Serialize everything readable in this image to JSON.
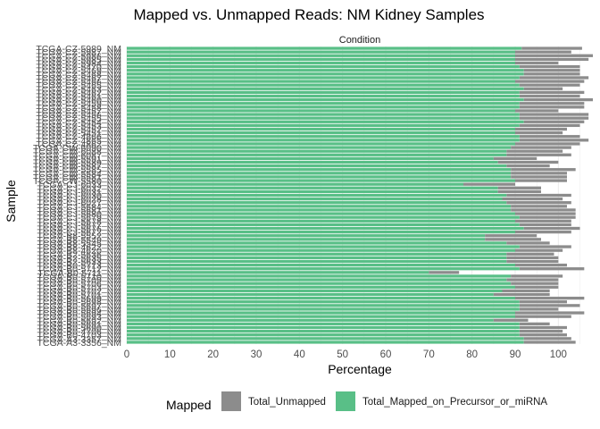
{
  "chart_data": {
    "type": "bar",
    "orientation": "horizontal",
    "stacked": true,
    "title": "Mapped vs. Unmapped Reads: NM Kidney Samples",
    "facet_label": "Condition",
    "xlabel": "Percentage",
    "ylabel": "Sample",
    "xlim": [
      0,
      108
    ],
    "x_ticks": [
      "0",
      "10",
      "20",
      "30",
      "40",
      "50",
      "60",
      "70",
      "80",
      "90",
      "100"
    ],
    "grid": true,
    "legend": {
      "title": "Mapped",
      "position": "bottom",
      "entries": [
        "Total_Unmapped",
        "Total_Mapped_on_Precursor_or_miRNA"
      ]
    },
    "colors": {
      "Total_Unmapped": "#8c8c8c",
      "Total_Mapped_on_Precursor_or_miRNA": "#59bf87"
    },
    "categories": [
      "TCGA-CZ-5989_NM",
      "TCGA-CZ-5987_NM",
      "TCGA-CZ-5986_NM",
      "TCGA-CZ-5985_NM",
      "TCGA-CZ-5984_NM",
      "TCGA-CZ-5470_NM",
      "TCGA-CZ-5469_NM",
      "TCGA-CZ-5468_NM",
      "TCGA-CZ-5467_NM",
      "TCGA-CZ-5466_NM",
      "TCGA-CZ-5465_NM",
      "TCGA-CZ-5463_NM",
      "TCGA-CZ-5462_NM",
      "TCGA-CZ-5461_NM",
      "TCGA-CZ-5460_NM",
      "TCGA-CZ-5459_NM",
      "TCGA-CZ-5458_NM",
      "TCGA-CZ-5457_NM",
      "TCGA-CZ-5456_NM",
      "TCGA-CZ-5455_NM",
      "TCGA-CZ-5454_NM",
      "TCGA-CZ-5453_NM",
      "TCGA-CZ-5452_NM",
      "TCGA-CZ-5451_NM",
      "TCGA-CZ-4866_NM",
      "TCGA-CZ-4865_NM",
      "TCGA-CZ-4862_NM",
      "TCGA-CW-6090_NM",
      "TCGA-CW-6088_NM",
      "TCGA-CW-6087_NM",
      "TCGA-CW-5591_NM",
      "TCGA-CW-5589_NM",
      "TCGA-CW-5587_NM",
      "TCGA-CW-5585_NM",
      "TCGA-CW-5584_NM",
      "TCGA-CW-5581_NM",
      "TCGA-CW-5580_NM",
      "TCGA-CJ-6033_NM",
      "TCGA-CJ-6032_NM",
      "TCGA-CJ-6031_NM",
      "TCGA-CJ-6030_NM",
      "TCGA-CJ-6028_NM",
      "TCGA-CJ-6027_NM",
      "TCGA-CJ-5684_NM",
      "TCGA-CJ-5681_NM",
      "TCGA-CJ-5680_NM",
      "TCGA-CJ-5679_NM",
      "TCGA-CJ-5678_NM",
      "TCGA-CJ-5677_NM",
      "TCGA-CJ-5676_NM",
      "TCGA-CJ-5672_NM",
      "TCGA-B8-5552_NM",
      "TCGA-B8-5549_NM",
      "TCGA-B8-5545_NM",
      "TCGA-B8-4622_NM",
      "TCGA-B8-4620_NM",
      "TCGA-B2-5636_NM",
      "TCGA-B2-5635_NM",
      "TCGA-B2-5633_NM",
      "TCGA-B0-5713_NM",
      "TCGA-B0-5712_NM",
      "TCGA-B0-5711_NM",
      "TCGA-B0-5710_NM",
      "TCGA-B0-5709_NM",
      "TCGA-B0-5706_NM",
      "TCGA-B0-5703_NM",
      "TCGA-B0-5702_NM",
      "TCGA-B0-5701_NM",
      "TCGA-B0-5699_NM",
      "TCGA-B0-5698_NM",
      "TCGA-B0-5697_NM",
      "TCGA-B0-5696_NM",
      "TCGA-B0-5694_NM",
      "TCGA-B0-5693_NM",
      "TCGA-B0-5692_NM",
      "TCGA-B0-5691_NM",
      "TCGA-B0-5690_NM",
      "TCGA-B0-4706_NM",
      "TCGA-B0-4703_NM",
      "TCGA-A3-3357_NM",
      "TCGA-A3-3356_NM"
    ],
    "series": [
      {
        "name": "Total_Mapped_on_Precursor_or_miRNA",
        "values": [
          91.5,
          90,
          90,
          90,
          90,
          91,
          92,
          92,
          91,
          90,
          91,
          92,
          91,
          91,
          92,
          91,
          91,
          90,
          91,
          91,
          92,
          91,
          90,
          90,
          91,
          91,
          90,
          89,
          88,
          88,
          85,
          86,
          88,
          89,
          89,
          89,
          90,
          78,
          86,
          86,
          88,
          87,
          88,
          89,
          89,
          90,
          91,
          90,
          91,
          92,
          90,
          83,
          83,
          88,
          91,
          90,
          88,
          88,
          88,
          90,
          91,
          70,
          89,
          88,
          89,
          90,
          87,
          85,
          90,
          91,
          91,
          91,
          90,
          90,
          85,
          91,
          91,
          91,
          91,
          92,
          92
        ]
      },
      {
        "name": "Total_Unmapped",
        "values": [
          14,
          13,
          18,
          17,
          10,
          14,
          13,
          13,
          16,
          16,
          14,
          9,
          15,
          14,
          16,
          15,
          15,
          10,
          16,
          16,
          14,
          14,
          12,
          11,
          14,
          16,
          15,
          14,
          13,
          15,
          10,
          14,
          10,
          15,
          13,
          13,
          12,
          12,
          10,
          10,
          15,
          14,
          15,
          13,
          15,
          14,
          13,
          13,
          12,
          13,
          13,
          12,
          13,
          10,
          12,
          11,
          11,
          12,
          12,
          12,
          15,
          7,
          12,
          12,
          11,
          10,
          11,
          13,
          16,
          11,
          14,
          9,
          16,
          13,
          8,
          7,
          11,
          10,
          11,
          11,
          12
        ]
      }
    ]
  }
}
